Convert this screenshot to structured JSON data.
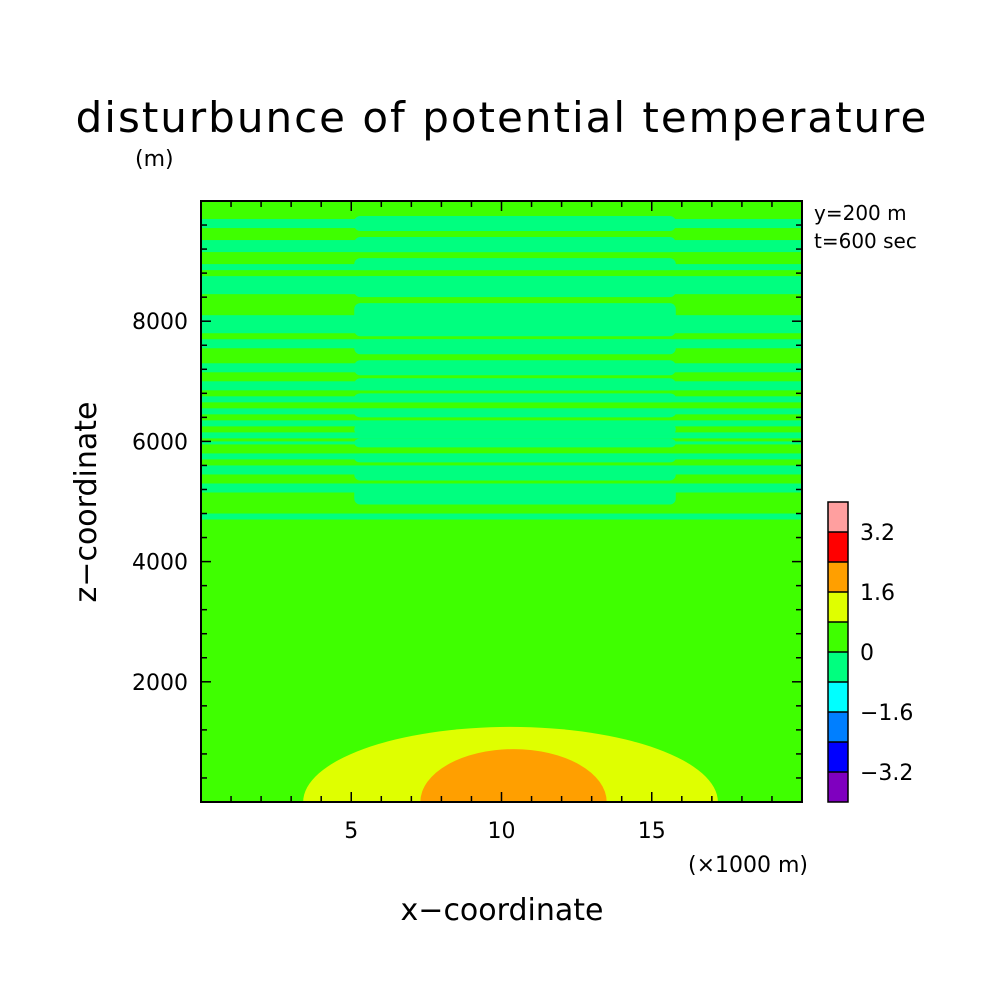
{
  "chart_data": {
    "type": "heatmap",
    "title": "disturbunce of potential temperature",
    "subtitle": "(m)",
    "xlabel": "x−coordinate",
    "ylabel": "z−coordinate",
    "x_unit": "(×1000 m)",
    "annotations": [
      "y=200 m",
      "t=600 sec"
    ],
    "xlim": [
      0,
      20
    ],
    "ylim": [
      0,
      10000
    ],
    "x_ticks": [
      5,
      10,
      15
    ],
    "y_ticks": [
      2000,
      4000,
      6000,
      8000
    ],
    "colorbar": {
      "colors": [
        "#7f00bf",
        "#0000ff",
        "#007fff",
        "#00ffff",
        "#00ff7f",
        "#3fff00",
        "#dfff00",
        "#ff9f00",
        "#ff0000",
        "#ff9f9f"
      ],
      "tick_labels": [
        "−3.2",
        "−1.6",
        "0",
        "1.6",
        "3.2"
      ]
    },
    "background_color": "#3fff00",
    "regions": [
      {
        "level": "0.8 to 1.6",
        "color": "#dfff00",
        "center_x": 10.3,
        "half_width_x": 6.9,
        "z_max": 1250
      },
      {
        "level": "1.6 to 2.4",
        "color": "#ff9f00",
        "center_x": 10.4,
        "half_width_x": 3.1,
        "z_max": 880
      },
      {
        "level": "-0.8 to 0",
        "color": "#00ff7f",
        "z_min": 4700,
        "z_max": 9800,
        "bands": "horizontal stripes"
      }
    ],
    "negative_bands": {
      "color": "#00ff7f",
      "outer": [
        [
          4700,
          4800
        ],
        [
          5150,
          5300
        ],
        [
          5450,
          5600
        ],
        [
          5700,
          5800
        ],
        [
          5950,
          6000
        ],
        [
          6050,
          6150
        ],
        [
          6250,
          6350
        ],
        [
          6450,
          6550
        ],
        [
          6650,
          6750
        ],
        [
          6850,
          7000
        ],
        [
          7150,
          7300
        ],
        [
          7550,
          7700
        ],
        [
          7800,
          8100
        ],
        [
          8450,
          8750
        ],
        [
          8850,
          8950
        ],
        [
          9150,
          9350
        ],
        [
          9550,
          9700
        ]
      ],
      "inner": [
        [
          4950,
          5250
        ],
        [
          5350,
          5550
        ],
        [
          5650,
          5800
        ],
        [
          5900,
          6050
        ],
        [
          6100,
          6300
        ],
        [
          6400,
          6550
        ],
        [
          6650,
          6800
        ],
        [
          6850,
          7050
        ],
        [
          7100,
          7350
        ],
        [
          7450,
          7700
        ],
        [
          7750,
          8300
        ],
        [
          8400,
          8750
        ],
        [
          8850,
          9050
        ],
        [
          9150,
          9400
        ],
        [
          9500,
          9750
        ]
      ],
      "inner_x_range": [
        5.1,
        15.8
      ]
    }
  }
}
